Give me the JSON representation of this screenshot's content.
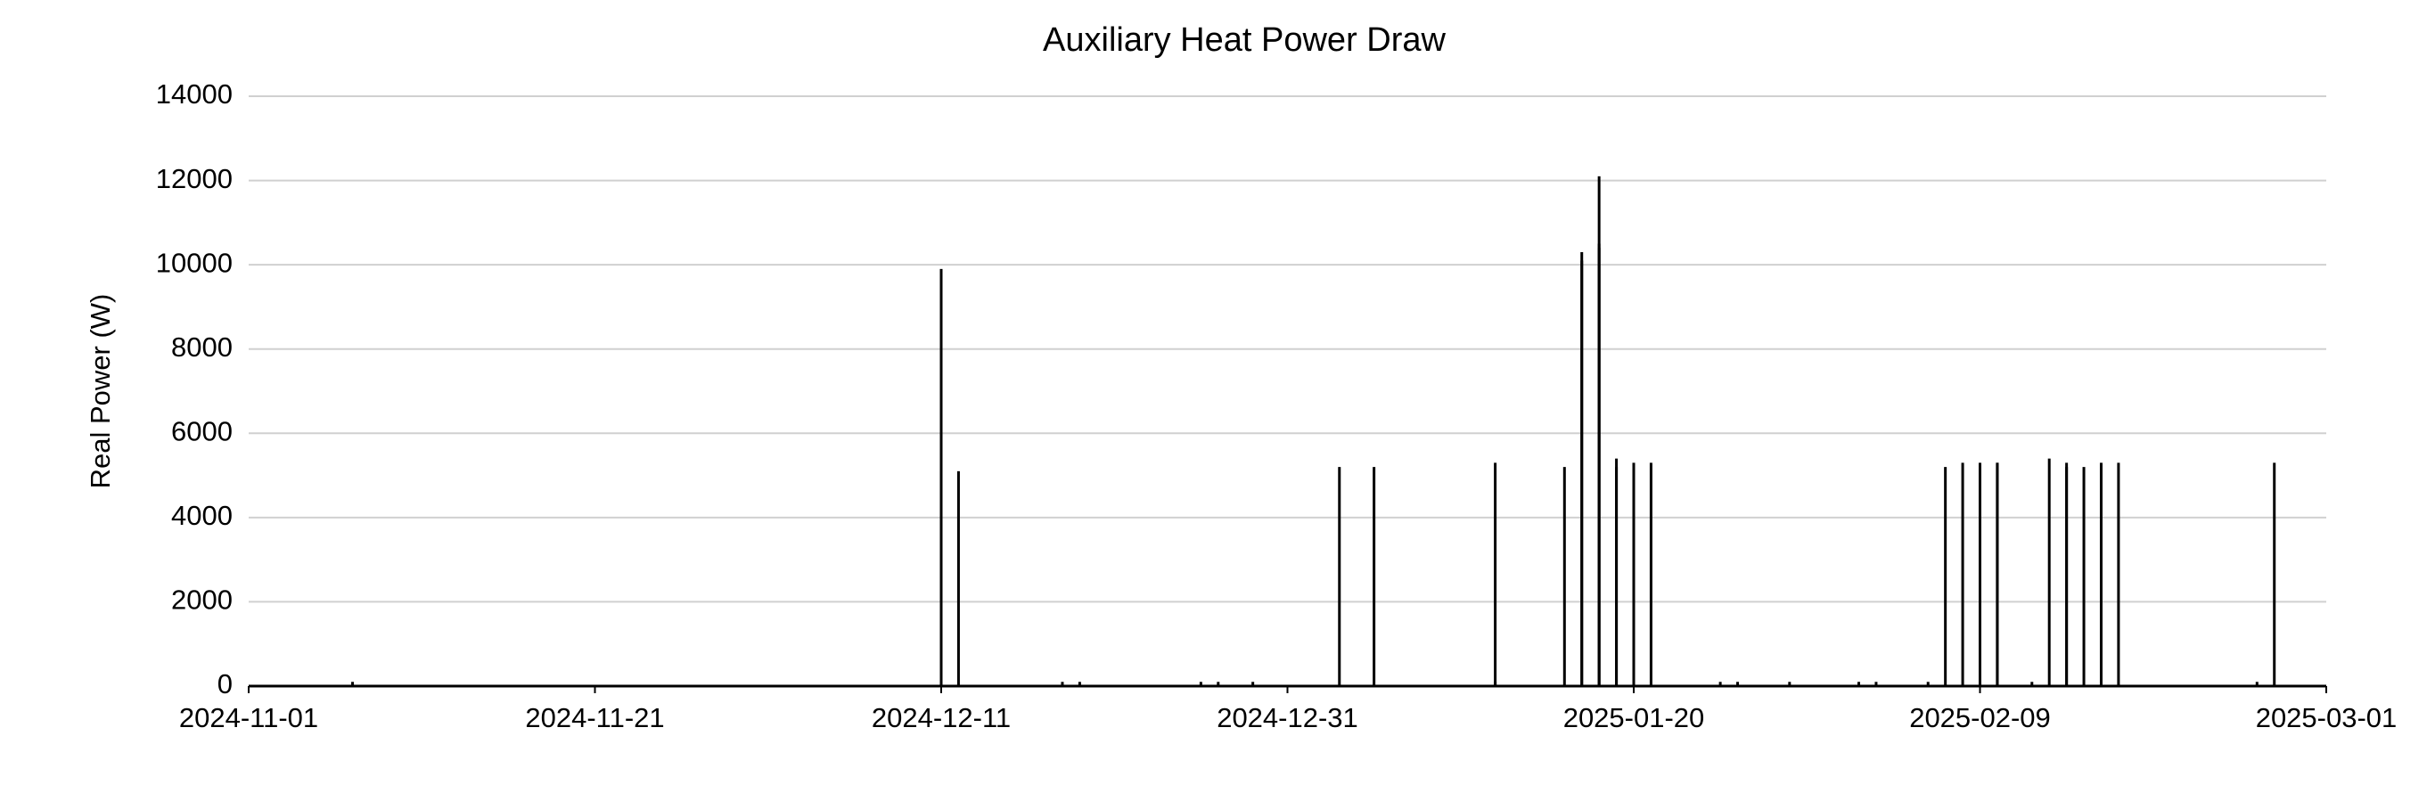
{
  "chart_data": {
    "type": "bar",
    "title": "Auxiliary Heat Power Draw",
    "y_label": "Real Power (W)",
    "color": "#000000",
    "grid": true,
    "xlim": [
      "2024-11-01",
      "2025-03-01"
    ],
    "xticks": [
      "2024-11-01",
      "2024-11-21",
      "2024-12-11",
      "2024-12-31",
      "2025-01-20",
      "2025-02-09",
      "2025-03-01"
    ],
    "ylim": [
      0,
      14000
    ],
    "yticks": [
      0,
      2000,
      4000,
      6000,
      8000,
      10000,
      12000,
      14000
    ],
    "x": [
      "2024-11-07",
      "2024-12-11",
      "2024-12-11",
      "2024-12-12",
      "2024-12-18",
      "2024-12-19",
      "2024-12-26",
      "2024-12-27",
      "2024-12-29",
      "2025-01-03",
      "2025-01-05",
      "2025-01-12",
      "2025-01-12",
      "2025-01-16",
      "2025-01-17",
      "2025-01-17",
      "2025-01-18",
      "2025-01-18",
      "2025-01-18",
      "2025-01-19",
      "2025-01-19",
      "2025-01-20",
      "2025-01-21",
      "2025-01-25",
      "2025-01-26",
      "2025-01-29",
      "2025-02-02",
      "2025-02-03",
      "2025-02-06",
      "2025-02-07",
      "2025-02-08",
      "2025-02-09",
      "2025-02-10",
      "2025-02-10",
      "2025-02-12",
      "2025-02-13",
      "2025-02-14",
      "2025-02-14",
      "2025-02-15",
      "2025-02-16",
      "2025-02-17",
      "2025-02-25",
      "2025-02-26"
    ],
    "values": [
      100,
      9900,
      9700,
      5100,
      100,
      100,
      100,
      100,
      100,
      5200,
      5200,
      100,
      5300,
      5200,
      10100,
      10300,
      12100,
      10400,
      10500,
      5200,
      5400,
      5300,
      5300,
      100,
      100,
      100,
      100,
      100,
      100,
      5200,
      5300,
      5300,
      5300,
      5300,
      100,
      5400,
      5200,
      5300,
      5200,
      5300,
      5300,
      100,
      5300
    ]
  }
}
